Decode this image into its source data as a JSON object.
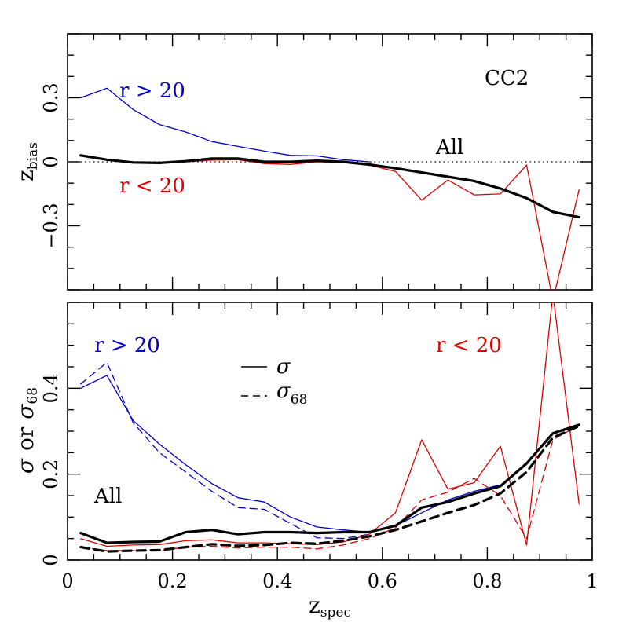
{
  "chart_data": [
    {
      "type": "line",
      "panel": "top",
      "ylabel_main": "z",
      "ylabel_sub": "bias",
      "xlim": [
        0,
        1
      ],
      "ylim": [
        -0.6,
        0.6
      ],
      "y_tick_labels": [
        {
          "value": -0.3,
          "label": "−0.3"
        },
        {
          "value": 0,
          "label": "0"
        },
        {
          "value": 0.3,
          "label": "0.3"
        }
      ],
      "reference_line": {
        "y": 0,
        "style": "dotted"
      },
      "annotations": {
        "panel_label": "CC2",
        "all_label": "All",
        "bright_label": "r > 20",
        "faint_label": "r < 20"
      },
      "colors": {
        "all": "#000000",
        "bright": "#0000cc",
        "faint": "#dd0000"
      },
      "x": [
        0.025,
        0.075,
        0.125,
        0.175,
        0.225,
        0.275,
        0.325,
        0.375,
        0.425,
        0.475,
        0.525,
        0.575,
        0.625,
        0.675,
        0.725,
        0.775,
        0.825,
        0.875,
        0.925,
        0.975
      ],
      "series": [
        {
          "key": "bright",
          "style": "solid",
          "width": 1.3,
          "x": [
            0.025,
            0.075,
            0.125,
            0.175,
            0.225,
            0.275,
            0.325,
            0.375,
            0.425,
            0.475,
            0.525,
            0.575
          ],
          "values": [
            0.3,
            0.345,
            0.245,
            0.175,
            0.14,
            0.095,
            0.072,
            0.05,
            0.03,
            0.028,
            0.01,
            0.0
          ]
        },
        {
          "key": "faint",
          "style": "solid",
          "width": 1.3,
          "x": [
            0.025,
            0.075,
            0.125,
            0.175,
            0.225,
            0.275,
            0.325,
            0.375,
            0.425,
            0.475,
            0.525,
            0.575,
            0.625,
            0.675,
            0.725,
            0.775,
            0.825,
            0.875,
            0.925,
            0.975
          ],
          "values": [
            0.03,
            0.008,
            -0.005,
            -0.005,
            0.0,
            0.008,
            0.01,
            -0.008,
            -0.012,
            0.0,
            -0.003,
            -0.015,
            -0.045,
            -0.18,
            -0.085,
            -0.155,
            -0.15,
            -0.015,
            -0.65,
            -0.13
          ]
        },
        {
          "key": "all",
          "style": "solid",
          "width": 3.2,
          "x": [
            0.025,
            0.075,
            0.125,
            0.175,
            0.225,
            0.275,
            0.325,
            0.375,
            0.425,
            0.475,
            0.525,
            0.575,
            0.625,
            0.675,
            0.725,
            0.775,
            0.825,
            0.875,
            0.925,
            0.975
          ],
          "values": [
            0.03,
            0.01,
            -0.003,
            -0.005,
            0.003,
            0.015,
            0.015,
            0.0,
            0.0,
            0.005,
            0.0,
            -0.013,
            -0.03,
            -0.05,
            -0.07,
            -0.09,
            -0.125,
            -0.17,
            -0.235,
            -0.26
          ]
        }
      ]
    },
    {
      "type": "line",
      "panel": "bottom",
      "xlim": [
        0,
        1
      ],
      "ylim": [
        0,
        0.6
      ],
      "x_tick_labels": [
        {
          "value": 0,
          "label": "0"
        },
        {
          "value": 0.2,
          "label": "0.2"
        },
        {
          "value": 0.4,
          "label": "0.4"
        },
        {
          "value": 0.6,
          "label": "0.6"
        },
        {
          "value": 0.8,
          "label": "0.8"
        },
        {
          "value": 1,
          "label": "1"
        }
      ],
      "y_tick_labels": [
        {
          "value": 0,
          "label": "0"
        },
        {
          "value": 0.2,
          "label": "0.2"
        },
        {
          "value": 0.4,
          "label": "0.4"
        }
      ],
      "xlabel_main": "z",
      "xlabel_sub": "spec",
      "ylabel_sigma": "σ",
      "ylabel_or": "or",
      "ylabel_sigma68_main": "σ",
      "ylabel_sigma68_sub": "68",
      "legend": [
        {
          "style": "solid",
          "symbol": "σ",
          "sub": ""
        },
        {
          "style": "dashed",
          "symbol": "σ",
          "sub": "68"
        }
      ],
      "annotations": {
        "all_label": "All",
        "bright_label": "r > 20",
        "faint_label": "r < 20"
      },
      "colors": {
        "all": "#000000",
        "bright": "#0000cc",
        "faint": "#dd0000"
      },
      "series": [
        {
          "key": "bright-sigma",
          "color_key": "bright",
          "style": "solid",
          "width": 1.3,
          "x": [
            0.025,
            0.075,
            0.125,
            0.175,
            0.225,
            0.275,
            0.325,
            0.375,
            0.425,
            0.475,
            0.525,
            0.575,
            0.625,
            0.675,
            0.725,
            0.775,
            0.825
          ],
          "values": [
            0.4,
            0.43,
            0.325,
            0.27,
            0.222,
            0.178,
            0.145,
            0.135,
            0.1,
            0.077,
            0.07,
            0.065,
            0.08,
            0.11,
            0.14,
            0.16,
            0.175
          ]
        },
        {
          "key": "bright-sigma68",
          "color_key": "bright",
          "style": "dashed",
          "width": 1.3,
          "x": [
            0.025,
            0.075,
            0.125,
            0.175,
            0.225,
            0.275,
            0.325,
            0.375,
            0.425,
            0.475,
            0.525,
            0.575
          ],
          "values": [
            0.41,
            0.46,
            0.32,
            0.25,
            0.205,
            0.16,
            0.122,
            0.118,
            0.085,
            0.052,
            0.05,
            0.06
          ]
        },
        {
          "key": "faint-sigma",
          "color_key": "faint",
          "style": "solid",
          "width": 1.3,
          "x": [
            0.025,
            0.075,
            0.125,
            0.175,
            0.225,
            0.275,
            0.325,
            0.375,
            0.425,
            0.475,
            0.525,
            0.575,
            0.625,
            0.675,
            0.725,
            0.775,
            0.825,
            0.875,
            0.925,
            0.975
          ],
          "values": [
            0.05,
            0.032,
            0.035,
            0.036,
            0.045,
            0.047,
            0.04,
            0.04,
            0.038,
            0.036,
            0.042,
            0.06,
            0.11,
            0.28,
            0.165,
            0.18,
            0.265,
            0.035,
            0.62,
            0.13
          ]
        },
        {
          "key": "faint-sigma68",
          "color_key": "faint",
          "style": "dashed",
          "width": 1.3,
          "x": [
            0.025,
            0.075,
            0.125,
            0.175,
            0.225,
            0.275,
            0.325,
            0.375,
            0.425,
            0.475,
            0.525,
            0.575,
            0.625,
            0.675,
            0.725,
            0.775,
            0.825,
            0.875,
            0.925,
            0.975
          ],
          "values": [
            0.03,
            0.022,
            0.022,
            0.022,
            0.03,
            0.032,
            0.028,
            0.03,
            0.03,
            0.026,
            0.035,
            0.05,
            0.075,
            0.14,
            0.158,
            0.19,
            0.15,
            0.05,
            0.28,
            0.315
          ]
        },
        {
          "key": "all-sigma",
          "color_key": "all",
          "style": "solid",
          "width": 3.2,
          "x": [
            0.025,
            0.075,
            0.125,
            0.175,
            0.225,
            0.275,
            0.325,
            0.375,
            0.425,
            0.475,
            0.525,
            0.575,
            0.625,
            0.675,
            0.725,
            0.775,
            0.825,
            0.875,
            0.925,
            0.975
          ],
          "values": [
            0.063,
            0.04,
            0.042,
            0.043,
            0.065,
            0.07,
            0.06,
            0.065,
            0.065,
            0.063,
            0.065,
            0.065,
            0.08,
            0.122,
            0.135,
            0.155,
            0.172,
            0.225,
            0.295,
            0.315
          ]
        },
        {
          "key": "all-sigma68",
          "color_key": "all",
          "style": "dashed",
          "width": 3.2,
          "x": [
            0.025,
            0.075,
            0.125,
            0.175,
            0.225,
            0.275,
            0.325,
            0.375,
            0.425,
            0.475,
            0.525,
            0.575,
            0.625,
            0.675,
            0.725,
            0.775,
            0.825,
            0.875,
            0.925,
            0.975
          ],
          "values": [
            0.03,
            0.02,
            0.022,
            0.023,
            0.03,
            0.037,
            0.033,
            0.035,
            0.04,
            0.038,
            0.045,
            0.055,
            0.07,
            0.09,
            0.11,
            0.128,
            0.155,
            0.205,
            0.285,
            0.312
          ]
        }
      ]
    }
  ]
}
